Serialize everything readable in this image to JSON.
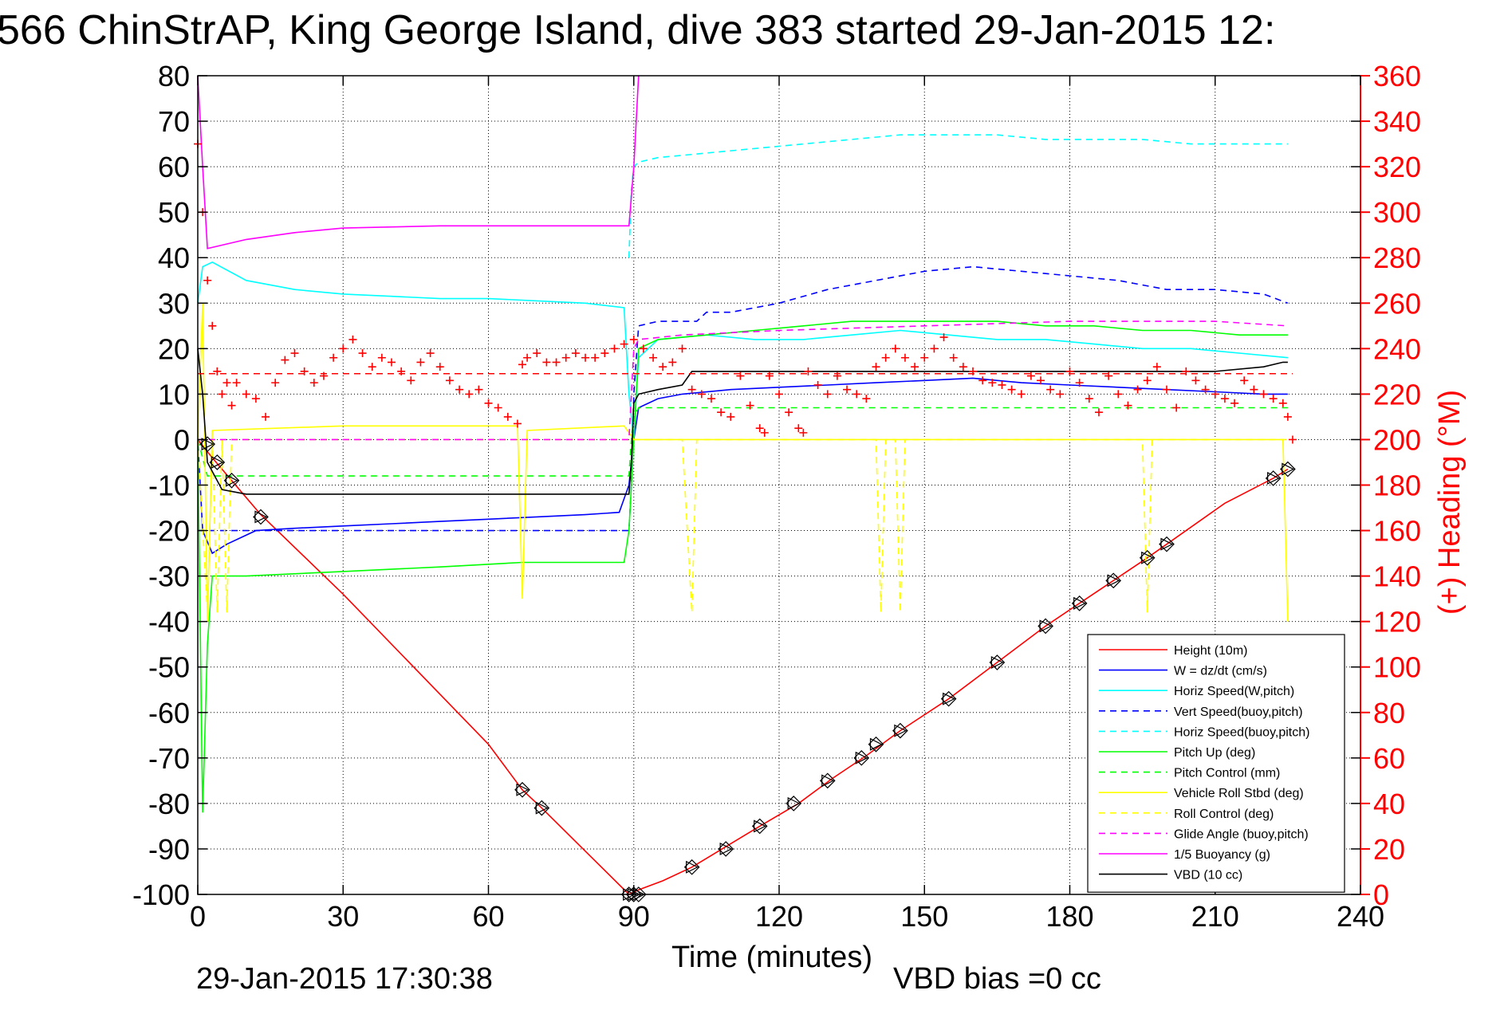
{
  "page": {
    "footer_timestamp": "29-Jan-2015 17:30:38",
    "vbd_bias": "VBD bias =0 cc"
  },
  "chart_data": {
    "type": "line",
    "title": "566 ChinStrAP, King George Island, dive 383 started 29-Jan-2015 12:",
    "xlabel": "Time (minutes)",
    "ylabel": "",
    "y2label": "(+) Heading (°M)",
    "xlim": [
      0,
      240
    ],
    "ylim": [
      -100,
      80
    ],
    "y2lim": [
      0,
      360
    ],
    "xticks": [
      0,
      30,
      60,
      90,
      120,
      150,
      180,
      210,
      240
    ],
    "yticks": [
      80,
      70,
      60,
      50,
      40,
      30,
      20,
      10,
      0,
      -10,
      -20,
      -30,
      -40,
      -50,
      -60,
      -70,
      -80,
      -90,
      -100
    ],
    "y2ticks": [
      360,
      340,
      320,
      300,
      280,
      260,
      240,
      220,
      200,
      180,
      160,
      140,
      120,
      100,
      80,
      60,
      40,
      20,
      0
    ],
    "grid": true,
    "legend_position": "bottom-right",
    "colors": {
      "red": "#ff0000",
      "blue": "#0000ff",
      "cyan": "#00ffff",
      "green": "#00ff00",
      "yellow": "#ffff00",
      "magenta": "#ff00ff",
      "black": "#000000"
    },
    "series": [
      {
        "name": "Height (10m)",
        "color": "#ff0000",
        "dash": "solid",
        "x": [
          0,
          3,
          7,
          13,
          30,
          60,
          67,
          71,
          89,
          91,
          96,
          102,
          109,
          116,
          124,
          131,
          138,
          145,
          155,
          165,
          175,
          182,
          189,
          196,
          200,
          212,
          222,
          225
        ],
        "y": [
          0,
          -4,
          -9,
          -16.5,
          -34,
          -67,
          -77,
          -81,
          -100,
          -99,
          -97,
          -94,
          -89.5,
          -85,
          -80,
          -74.5,
          -69.5,
          -64,
          -57,
          -49,
          -41,
          -36,
          -31,
          -26,
          -23,
          -14,
          -8.5,
          -6.5
        ]
      },
      {
        "name": "W = dz/dt (cm/s)",
        "color": "#0000ff",
        "dash": "solid",
        "x": [
          0,
          1,
          3,
          6,
          12,
          20,
          30,
          40,
          50,
          60,
          70,
          80,
          87,
          89,
          90,
          91,
          95,
          100,
          110,
          120,
          130,
          140,
          150,
          160,
          170,
          180,
          190,
          200,
          210,
          220,
          225
        ],
        "y": [
          0,
          -20,
          -25,
          -23,
          -20,
          -19.5,
          -19,
          -18.5,
          -18,
          -17.5,
          -17,
          -16.5,
          -16,
          -10,
          0,
          7,
          9,
          10,
          11,
          11.5,
          12,
          12.5,
          13,
          13.5,
          12.5,
          12,
          11.5,
          11,
          10.5,
          10,
          10
        ]
      },
      {
        "name": "Horiz Speed(W,pitch)",
        "color": "#00ffff",
        "dash": "solid",
        "x": [
          0,
          1,
          3,
          10,
          20,
          30,
          40,
          50,
          60,
          70,
          80,
          88,
          89,
          90,
          91,
          95,
          105,
          115,
          125,
          135,
          145,
          155,
          165,
          175,
          185,
          195,
          205,
          215,
          225
        ],
        "y": [
          30,
          38,
          39,
          35,
          33,
          32,
          31.5,
          31,
          31,
          30.5,
          30,
          29,
          10,
          0,
          18,
          22,
          23,
          22,
          22,
          23,
          24,
          23,
          22,
          22,
          21,
          20,
          20,
          19,
          18
        ]
      },
      {
        "name": "Vert Speed(buoy,pitch)",
        "color": "#0000ff",
        "dash": "dashed",
        "x": [
          0,
          1,
          3,
          10,
          50,
          89,
          89.5,
          90,
          91,
          95,
          103,
          105,
          110,
          120,
          130,
          140,
          150,
          160,
          170,
          180,
          190,
          200,
          210,
          220,
          225
        ],
        "y": [
          -20,
          -20,
          -20,
          -20,
          -20,
          -20,
          -10,
          10,
          25,
          26,
          26,
          28,
          28,
          30,
          33,
          35,
          37,
          38,
          37,
          36,
          35,
          33,
          33,
          32,
          30
        ]
      },
      {
        "name": "Horiz Speed(buoy,pitch)",
        "color": "#00ffff",
        "dash": "dashed",
        "x": [
          89,
          89.5,
          90,
          91,
          95,
          105,
          115,
          125,
          135,
          145,
          155,
          165,
          175,
          185,
          195,
          205,
          215,
          225
        ],
        "y": [
          40,
          55,
          60,
          61,
          62,
          63,
          64,
          65,
          66,
          67,
          67,
          67,
          66,
          66,
          66,
          65,
          65,
          65
        ]
      },
      {
        "name": "Pitch Up (deg)",
        "color": "#00ff00",
        "dash": "solid",
        "x": [
          0,
          1,
          2,
          3,
          10,
          30,
          50,
          67,
          70,
          88,
          89,
          90,
          91,
          95,
          105,
          115,
          125,
          135,
          145,
          155,
          165,
          175,
          185,
          195,
          205,
          215,
          225
        ],
        "y": [
          0,
          -82,
          -45,
          -30,
          -30,
          -29,
          -28,
          -27,
          -27,
          -27,
          -20,
          0,
          20,
          22,
          23,
          24,
          25,
          26,
          26,
          26,
          26,
          25,
          25,
          24,
          24,
          23,
          23
        ]
      },
      {
        "name": "Pitch Control (mm)",
        "color": "#00ff00",
        "dash": "dashed",
        "x": [
          0,
          2,
          89,
          89.5,
          90,
          91,
          225
        ],
        "y": [
          0,
          -8,
          -8,
          0,
          5,
          7,
          7
        ]
      },
      {
        "name": "Vehicle Roll Stbd (deg)",
        "color": "#ffff00",
        "dash": "solid",
        "x": [
          0,
          1,
          2,
          3,
          30,
          60,
          66,
          67,
          68,
          88,
          90,
          100,
          120,
          150,
          180,
          210,
          224,
          225
        ],
        "y": [
          0,
          30,
          -40,
          2,
          3,
          3,
          3,
          -35,
          2,
          3,
          0,
          0,
          0,
          0,
          0,
          0,
          0,
          -40
        ]
      },
      {
        "name": "Roll Control (deg)",
        "color": "#ffff00",
        "dash": "dashed",
        "x": [
          0,
          2,
          3,
          4,
          5,
          6,
          7,
          8,
          89,
          90,
          100,
          102,
          103,
          104,
          140,
          141,
          142,
          143,
          144,
          145,
          146,
          147,
          195,
          196,
          197,
          198,
          225
        ],
        "y": [
          0,
          -38,
          0,
          -38,
          0,
          -38,
          0,
          0,
          0,
          0,
          0,
          -38,
          0,
          0,
          0,
          -38,
          0,
          0,
          0,
          -38,
          0,
          0,
          0,
          -38,
          0,
          0,
          0
        ]
      },
      {
        "name": "Glide Angle (buoy,pitch)",
        "color": "#ff00ff",
        "dash": "dashed",
        "x": [
          0,
          89,
          90,
          91,
          100,
          120,
          150,
          180,
          210,
          225
        ],
        "y": [
          0,
          0,
          20,
          22,
          23,
          24,
          25,
          26,
          26,
          25
        ]
      },
      {
        "name": "1/5 Buoyancy (g)",
        "color": "#ff00ff",
        "dash": "solid",
        "x": [
          0,
          1,
          2,
          10,
          20,
          30,
          50,
          70,
          88,
          89,
          90,
          91
        ],
        "y": [
          80,
          60,
          42,
          44,
          45.5,
          46.5,
          47,
          47,
          47,
          47,
          60,
          80
        ]
      },
      {
        "name": "VBD (10 cc)",
        "color": "#000000",
        "dash": "solid",
        "x": [
          0,
          1,
          2,
          5,
          10,
          89,
          89.5,
          90,
          91,
          95,
          100,
          102,
          130,
          160,
          200,
          210,
          220,
          224,
          225
        ],
        "y": [
          20,
          10,
          -5,
          -11,
          -12,
          -12,
          -5,
          8,
          10,
          11,
          12,
          15,
          15,
          15,
          15,
          15,
          16,
          17,
          17
        ]
      }
    ],
    "heading_markers": {
      "name": "Heading",
      "color": "#ff0000",
      "axis": "right",
      "x": [
        0,
        1,
        2,
        3,
        4,
        5,
        6,
        7,
        8,
        10,
        12,
        14,
        16,
        18,
        20,
        22,
        24,
        26,
        28,
        30,
        32,
        34,
        36,
        38,
        40,
        42,
        44,
        46,
        48,
        50,
        52,
        54,
        56,
        58,
        60,
        62,
        64,
        66,
        67,
        68,
        70,
        72,
        74,
        76,
        78,
        80,
        82,
        84,
        86,
        88,
        90,
        92,
        94,
        96,
        98,
        100,
        102,
        104,
        106,
        108,
        110,
        112,
        114,
        116,
        117,
        118,
        120,
        122,
        124,
        125,
        126,
        128,
        130,
        132,
        134,
        136,
        138,
        140,
        142,
        144,
        146,
        148,
        150,
        152,
        154,
        156,
        158,
        160,
        162,
        164,
        166,
        168,
        170,
        172,
        174,
        176,
        178,
        180,
        182,
        184,
        186,
        188,
        190,
        192,
        194,
        196,
        198,
        200,
        202,
        204,
        206,
        208,
        210,
        212,
        214,
        216,
        218,
        220,
        222,
        224,
        225,
        226
      ],
      "y": [
        330,
        300,
        270,
        250,
        230,
        220,
        225,
        215,
        225,
        220,
        218,
        210,
        225,
        235,
        238,
        230,
        225,
        228,
        236,
        240,
        244,
        238,
        232,
        236,
        234,
        230,
        226,
        234,
        238,
        232,
        226,
        222,
        220,
        222,
        216,
        214,
        210,
        207,
        233,
        236,
        238,
        234,
        234,
        236,
        238,
        236,
        236,
        238,
        240,
        242,
        244,
        240,
        236,
        232,
        234,
        240,
        222,
        220,
        218,
        212,
        210,
        228,
        215,
        205,
        203,
        228,
        220,
        212,
        205,
        203,
        230,
        224,
        220,
        228,
        222,
        220,
        218,
        232,
        236,
        240,
        236,
        232,
        236,
        240,
        245,
        236,
        232,
        230,
        226,
        225,
        224,
        222,
        220,
        228,
        226,
        222,
        220,
        230,
        225,
        218,
        212,
        228,
        220,
        215,
        222,
        226,
        232,
        222,
        214,
        230,
        226,
        222,
        220,
        218,
        216,
        226,
        222,
        220,
        218,
        216,
        210,
        200
      ]
    },
    "vbd_bias_dashed_line": 229,
    "dive_points": {
      "x": [
        2,
        4,
        7,
        13,
        67,
        71,
        89,
        90,
        91,
        102,
        109,
        116,
        123,
        130,
        137,
        140,
        145,
        155,
        165,
        175,
        182,
        189,
        196,
        200,
        222,
        225
      ],
      "y": [
        -1,
        -5,
        -9,
        -17,
        -77,
        -81,
        -100,
        -100,
        -100,
        -94,
        -90,
        -85,
        -80,
        -75,
        -70,
        -67,
        -64,
        -57,
        -49,
        -41,
        -36,
        -31,
        -26,
        -23,
        -8.5,
        -6.5
      ]
    }
  }
}
